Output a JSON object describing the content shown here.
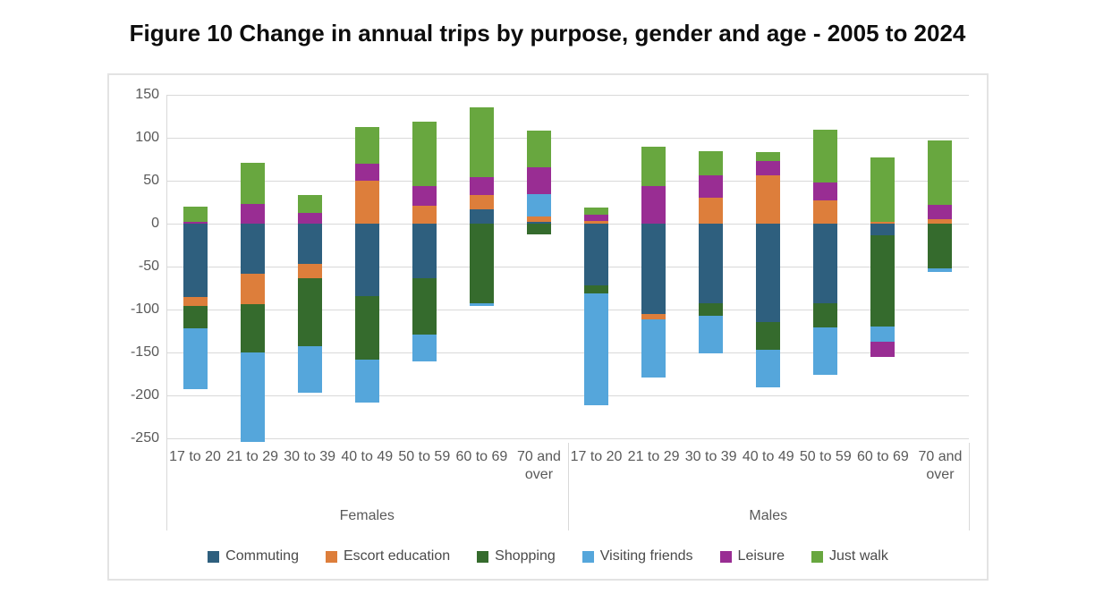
{
  "chart_data": {
    "type": "bar",
    "stacked": true,
    "title": "Figure 10 Change in annual trips by purpose, gender and age - 2005 to 2024",
    "grid": true,
    "legend_position": "bottom",
    "y_axis": {
      "tick_values": [
        150,
        100,
        50,
        0,
        -50,
        -100,
        -150,
        -200,
        -250
      ],
      "max_visible": 150,
      "min_visible": -250
    },
    "groups": [
      "Females",
      "Males"
    ],
    "categories": [
      "17 to 20",
      "21 to 29",
      "30 to 39",
      "40 to 49",
      "50 to 59",
      "60 to 69",
      "70 and over"
    ],
    "series": [
      {
        "name": "Commuting",
        "color": "#2E5F7E",
        "values": [
          -85,
          -58,
          -47,
          -84,
          -64,
          17,
          2,
          -72,
          -105,
          -93,
          -115,
          -93,
          -14,
          0
        ]
      },
      {
        "name": "Escort education",
        "color": "#DD7E3B",
        "values": [
          -11,
          -36,
          -17,
          50,
          21,
          16,
          6,
          3,
          -6,
          30,
          56,
          27,
          2,
          5
        ]
      },
      {
        "name": "Shopping",
        "color": "#356B2D",
        "values": [
          -26,
          -56,
          -79,
          -74,
          -65,
          -93,
          -12,
          -9,
          0,
          -14,
          -32,
          -28,
          -106,
          -52
        ]
      },
      {
        "name": "Visiting friends",
        "color": "#55A6DB",
        "values": [
          -71,
          -104,
          -54,
          -50,
          -31,
          -3,
          26,
          -130,
          -68,
          -44,
          -44,
          -55,
          -18,
          -4
        ]
      },
      {
        "name": "Leisure",
        "color": "#992D93",
        "values": [
          2,
          23,
          13,
          20,
          23,
          21,
          32,
          7,
          44,
          26,
          17,
          21,
          -17,
          17
        ]
      },
      {
        "name": "Just walk",
        "color": "#68A73F",
        "values": [
          18,
          48,
          20,
          42,
          75,
          81,
          42,
          9,
          46,
          28,
          10,
          61,
          75,
          75
        ]
      }
    ]
  }
}
